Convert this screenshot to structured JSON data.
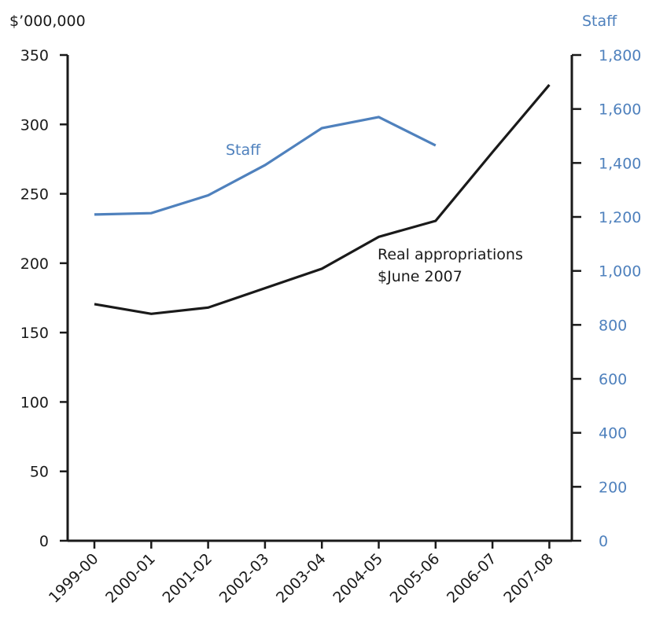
{
  "chart_data": {
    "type": "line",
    "categories": [
      "1999-00",
      "2000-01",
      "2001-02",
      "2002-03",
      "2003-04",
      "2004-05",
      "2005-06",
      "2006-07",
      "2007-08"
    ],
    "left_axis": {
      "label": "$’000,000",
      "ylim": [
        0,
        350
      ],
      "ticks": [
        0,
        50,
        100,
        150,
        200,
        250,
        300,
        350
      ],
      "tick_labels": [
        "0",
        "50",
        "100",
        "150",
        "200",
        "250",
        "300",
        "350"
      ]
    },
    "right_axis": {
      "label": "Staff",
      "ylim": [
        0,
        1800
      ],
      "ticks": [
        0,
        200,
        400,
        600,
        800,
        1000,
        1200,
        1400,
        1600,
        1800
      ],
      "tick_labels": [
        "0",
        "200",
        "400",
        "600",
        "800",
        "1,000",
        "1,200",
        "1,400",
        "1,600",
        "1,800"
      ],
      "color": "#4f81bd"
    },
    "series": [
      {
        "name": "Real appropriations $June 2007",
        "label_lines": [
          "Real appropriations",
          "$June 2007"
        ],
        "axis": "left",
        "color": "#1a1a1a",
        "values": [
          170.5,
          163.5,
          168,
          182,
          196,
          219,
          230.5,
          280,
          328.5
        ]
      },
      {
        "name": "Staff",
        "axis": "right",
        "color": "#4f81bd",
        "values": [
          1209,
          1214,
          1280,
          1392,
          1529,
          1570,
          1465,
          null,
          null
        ]
      }
    ],
    "grid": false,
    "legend": "inline labels"
  }
}
